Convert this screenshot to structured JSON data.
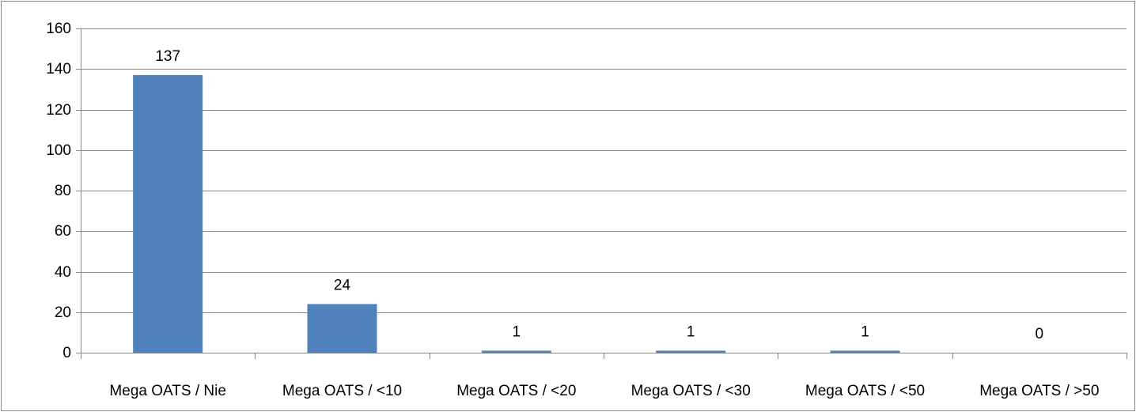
{
  "chart_data": {
    "type": "bar",
    "categories": [
      "Mega OATS / Nie",
      "Mega OATS / <10",
      "Mega OATS / <20",
      "Mega OATS / <30",
      "Mega OATS / <50",
      "Mega OATS / >50"
    ],
    "values": [
      137,
      24,
      1,
      1,
      1,
      0
    ],
    "data_labels": [
      "137",
      "24",
      "1",
      "1",
      "1",
      "0"
    ],
    "yticks": [
      "0",
      "20",
      "40",
      "60",
      "80",
      "100",
      "120",
      "140",
      "160"
    ],
    "ylim": [
      0,
      160
    ],
    "ytick_step": 20,
    "grid": true,
    "legend": "none",
    "bar_color": "#4f81bd",
    "grid_color": "#868686",
    "border_color": "#878787"
  }
}
